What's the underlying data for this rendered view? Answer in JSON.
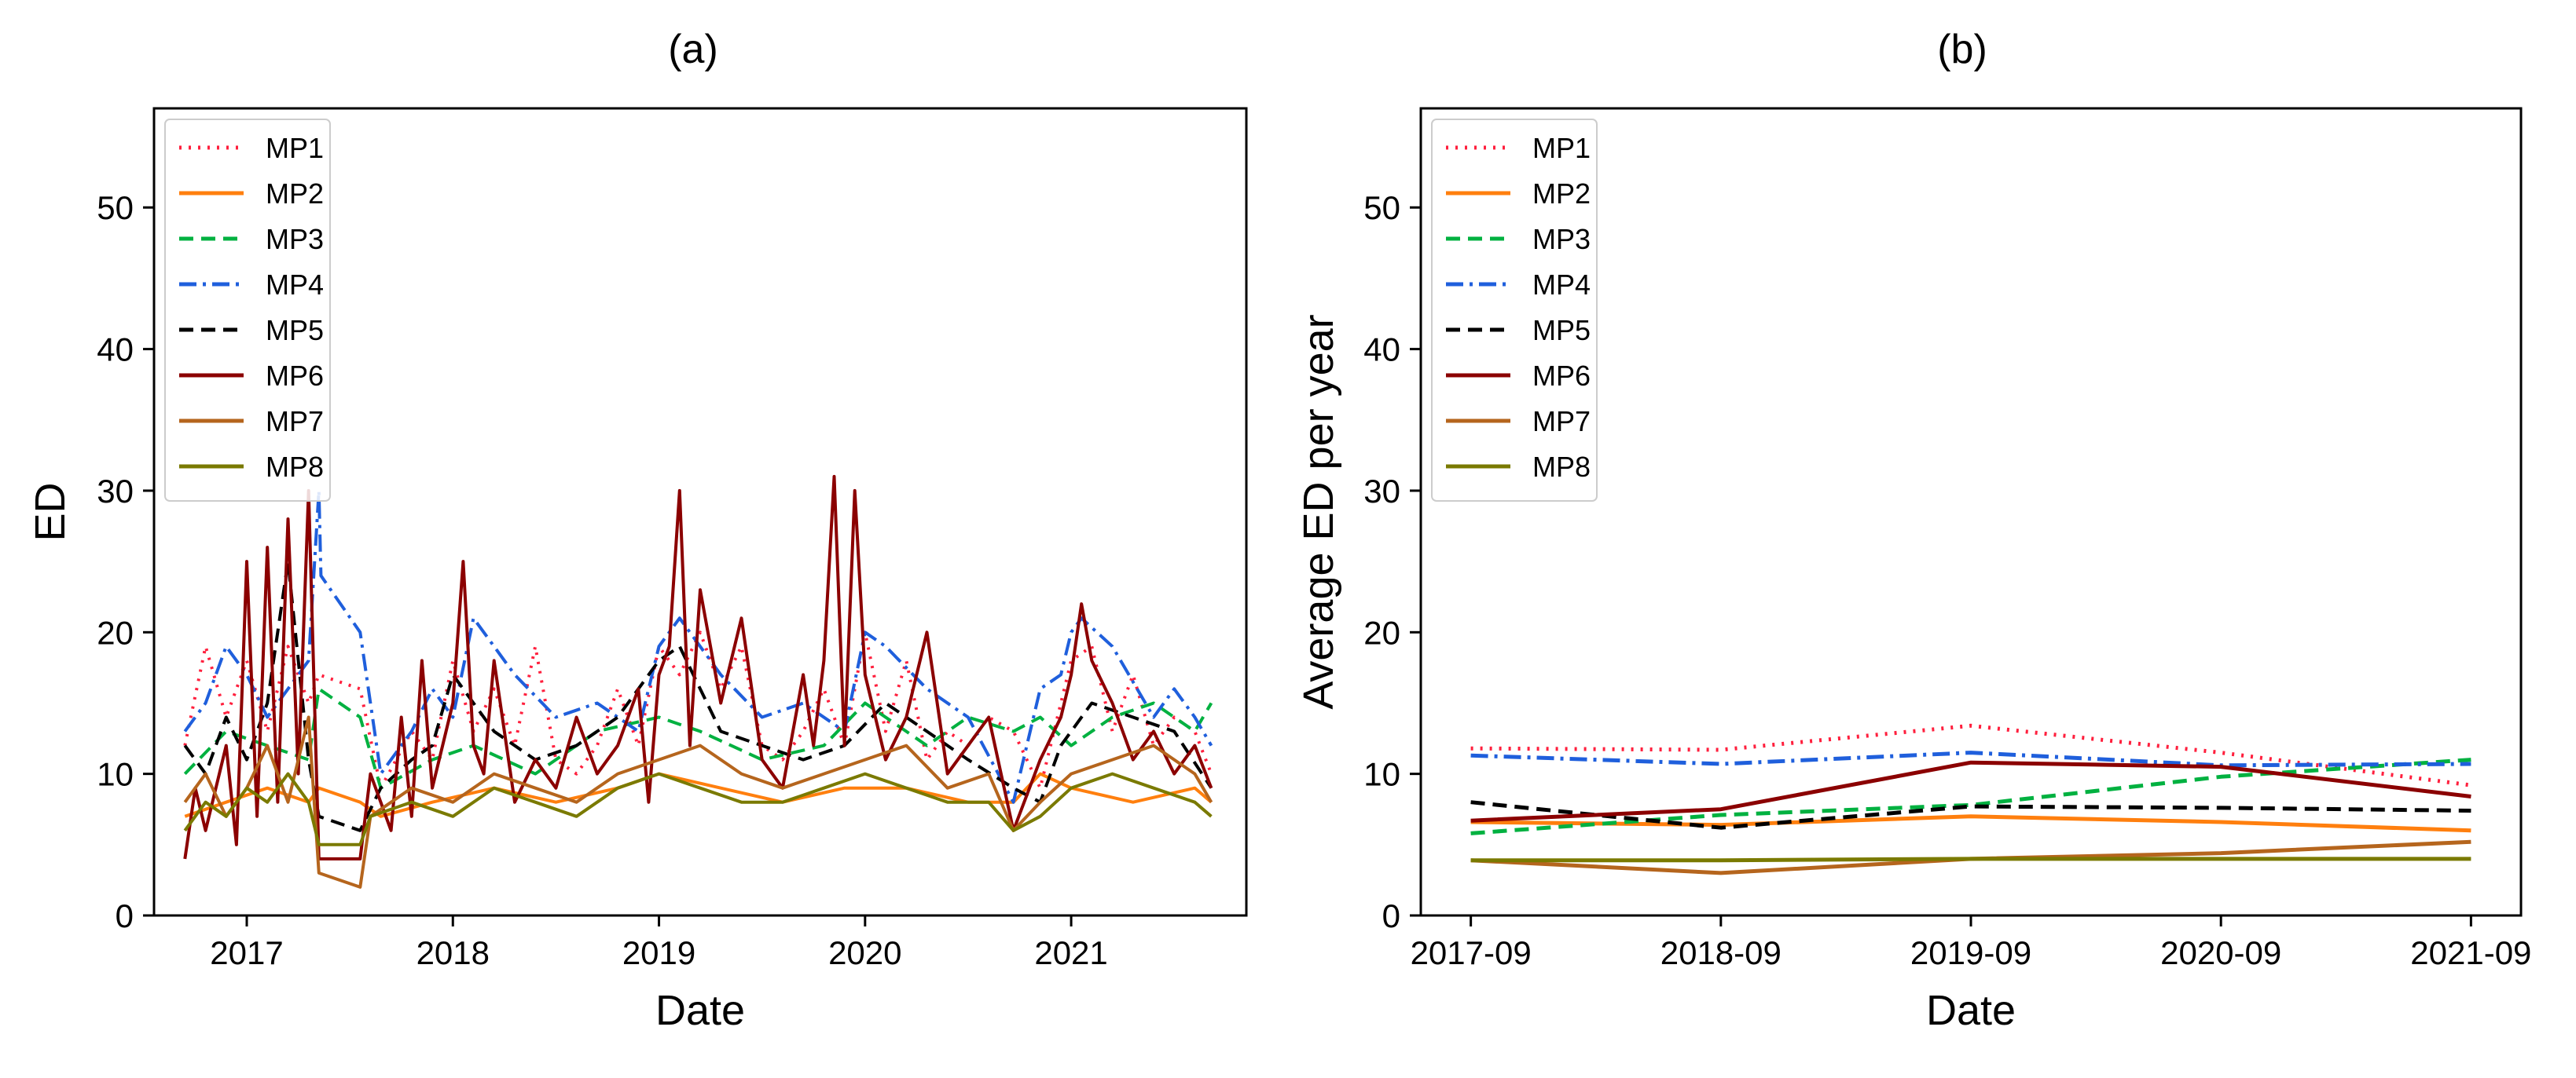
{
  "figure": {
    "panels": [
      "(a)",
      "(b)"
    ]
  },
  "series_styles": [
    {
      "name": "MP1",
      "color": "#ff1f3d",
      "dash": "dotted"
    },
    {
      "name": "MP2",
      "color": "#ff7f0e",
      "dash": "solid"
    },
    {
      "name": "MP3",
      "color": "#00b140",
      "dash": "dashed"
    },
    {
      "name": "MP4",
      "color": "#1f5fdc",
      "dash": "dashdot"
    },
    {
      "name": "MP5",
      "color": "#000000",
      "dash": "dashed"
    },
    {
      "name": "MP6",
      "color": "#8b0000",
      "dash": "solid"
    },
    {
      "name": "MP7",
      "color": "#b5651d",
      "dash": "solid"
    },
    {
      "name": "MP8",
      "color": "#7a7a00",
      "dash": "solid"
    }
  ],
  "chart_data": [
    {
      "type": "line",
      "title": "(a)",
      "xlabel": "Date",
      "ylabel": "ED",
      "xlim": [
        2016.55,
        2021.85
      ],
      "ylim": [
        0,
        57
      ],
      "xticks": [
        2017,
        2018,
        2019,
        2020,
        2021
      ],
      "xtick_labels": [
        "2017",
        "2018",
        "2019",
        "2020",
        "2021"
      ],
      "yticks": [
        0,
        10,
        20,
        30,
        40,
        50
      ],
      "ytick_labels": [
        "0",
        "10",
        "20",
        "30",
        "40",
        "50"
      ],
      "legend": [
        "MP1",
        "MP2",
        "MP3",
        "MP4",
        "MP5",
        "MP6",
        "MP7",
        "MP8"
      ],
      "legend_loc": "upper-left",
      "note": "Dense daily time series approximated by envelope points (peaks) per series",
      "series": [
        {
          "name": "MP1",
          "x": [
            2016.7,
            2016.8,
            2016.9,
            2017.0,
            2017.1,
            2017.2,
            2017.3,
            2017.35,
            2017.55,
            2017.65,
            2017.8,
            2017.9,
            2018.0,
            2018.1,
            2018.2,
            2018.3,
            2018.4,
            2018.5,
            2018.6,
            2018.7,
            2018.8,
            2018.9,
            2019.0,
            2019.1,
            2019.2,
            2019.3,
            2019.4,
            2019.5,
            2019.6,
            2019.7,
            2019.8,
            2019.9,
            2020.0,
            2020.1,
            2020.2,
            2020.3,
            2020.4,
            2020.5,
            2020.6,
            2020.72,
            2020.85,
            2020.95,
            2021.0,
            2021.1,
            2021.2,
            2021.3,
            2021.4,
            2021.5,
            2021.6,
            2021.68
          ],
          "y": [
            12,
            19,
            14,
            18,
            13,
            19,
            15,
            17,
            16,
            9,
            13,
            11,
            18,
            13,
            16,
            12,
            19,
            11,
            10,
            12,
            16,
            12,
            19,
            17,
            20,
            16,
            19,
            12,
            11,
            13,
            16,
            12,
            20,
            13,
            18,
            11,
            13,
            12,
            14,
            13,
            9,
            15,
            18,
            19,
            13,
            17,
            12,
            14,
            13,
            10
          ]
        },
        {
          "name": "MP2",
          "x": [
            2016.7,
            2016.9,
            2017.1,
            2017.3,
            2017.35,
            2017.55,
            2017.65,
            2017.9,
            2018.2,
            2018.5,
            2018.8,
            2019.0,
            2019.3,
            2019.6,
            2019.9,
            2020.2,
            2020.5,
            2020.72,
            2020.85,
            2021.0,
            2021.3,
            2021.6,
            2021.68
          ],
          "y": [
            7,
            8,
            9,
            8,
            9,
            8,
            7,
            8,
            9,
            8,
            9,
            10,
            9,
            8,
            9,
            9,
            8,
            8,
            10,
            9,
            8,
            9,
            8
          ]
        },
        {
          "name": "MP3",
          "x": [
            2016.7,
            2016.9,
            2017.1,
            2017.3,
            2017.35,
            2017.55,
            2017.65,
            2017.9,
            2018.1,
            2018.4,
            2018.7,
            2019.0,
            2019.2,
            2019.5,
            2019.8,
            2020.0,
            2020.3,
            2020.5,
            2020.72,
            2020.85,
            2021.0,
            2021.2,
            2021.4,
            2021.6,
            2021.68
          ],
          "y": [
            10,
            13,
            12,
            11,
            16,
            14,
            9,
            11,
            12,
            10,
            13,
            14,
            13,
            11,
            12,
            15,
            12,
            14,
            13,
            14,
            12,
            14,
            15,
            13,
            15
          ]
        },
        {
          "name": "MP4",
          "x": [
            2016.7,
            2016.8,
            2016.9,
            2017.0,
            2017.1,
            2017.2,
            2017.3,
            2017.35,
            2017.36,
            2017.55,
            2017.65,
            2017.8,
            2017.9,
            2018.0,
            2018.1,
            2018.2,
            2018.3,
            2018.5,
            2018.7,
            2018.9,
            2019.0,
            2019.1,
            2019.3,
            2019.5,
            2019.7,
            2019.9,
            2020.0,
            2020.1,
            2020.3,
            2020.5,
            2020.72,
            2020.85,
            2020.95,
            2021.0,
            2021.05,
            2021.2,
            2021.4,
            2021.5,
            2021.6,
            2021.68
          ],
          "y": [
            13,
            15,
            19,
            17,
            14,
            16,
            18,
            30,
            24,
            20,
            10,
            13,
            16,
            14,
            21,
            19,
            17,
            14,
            15,
            13,
            19,
            21,
            17,
            14,
            15,
            13,
            20,
            19,
            16,
            14,
            8,
            16,
            17,
            20,
            21,
            19,
            14,
            16,
            14,
            12
          ]
        },
        {
          "name": "MP5",
          "x": [
            2016.7,
            2016.8,
            2016.9,
            2017.0,
            2017.1,
            2017.2,
            2017.3,
            2017.35,
            2017.55,
            2017.65,
            2017.8,
            2017.9,
            2018.0,
            2018.2,
            2018.4,
            2018.6,
            2018.8,
            2019.0,
            2019.1,
            2019.3,
            2019.5,
            2019.7,
            2019.9,
            2020.1,
            2020.3,
            2020.5,
            2020.72,
            2020.85,
            2020.95,
            2021.1,
            2021.3,
            2021.5,
            2021.68
          ],
          "y": [
            12,
            10,
            14,
            11,
            15,
            25,
            11,
            7,
            6,
            9,
            11,
            12,
            17,
            13,
            11,
            12,
            14,
            18,
            19,
            13,
            12,
            11,
            12,
            15,
            13,
            11,
            9,
            8,
            12,
            15,
            14,
            13,
            9
          ]
        },
        {
          "name": "MP6",
          "x": [
            2016.7,
            2016.75,
            2016.8,
            2016.9,
            2016.95,
            2017.0,
            2017.05,
            2017.1,
            2017.15,
            2017.2,
            2017.25,
            2017.3,
            2017.35,
            2017.55,
            2017.6,
            2017.7,
            2017.75,
            2017.8,
            2017.85,
            2017.9,
            2017.95,
            2018.0,
            2018.05,
            2018.1,
            2018.15,
            2018.2,
            2018.3,
            2018.4,
            2018.5,
            2018.6,
            2018.7,
            2018.8,
            2018.9,
            2018.95,
            2019.0,
            2019.05,
            2019.1,
            2019.15,
            2019.2,
            2019.3,
            2019.4,
            2019.5,
            2019.6,
            2019.7,
            2019.75,
            2019.8,
            2019.85,
            2019.9,
            2019.95,
            2020.0,
            2020.1,
            2020.2,
            2020.3,
            2020.4,
            2020.5,
            2020.6,
            2020.72,
            2020.85,
            2020.95,
            2021.0,
            2021.05,
            2021.1,
            2021.2,
            2021.3,
            2021.4,
            2021.5,
            2021.6,
            2021.68
          ],
          "y": [
            4,
            9,
            6,
            12,
            5,
            25,
            7,
            26,
            8,
            28,
            10,
            30,
            4,
            4,
            10,
            6,
            14,
            7,
            18,
            9,
            12,
            15,
            25,
            12,
            10,
            18,
            8,
            11,
            9,
            14,
            10,
            12,
            16,
            8,
            17,
            19,
            30,
            12,
            23,
            15,
            21,
            11,
            9,
            17,
            12,
            18,
            31,
            12,
            30,
            17,
            11,
            14,
            20,
            10,
            12,
            14,
            6,
            11,
            14,
            17,
            22,
            18,
            15,
            11,
            13,
            10,
            12,
            9
          ]
        },
        {
          "name": "MP7",
          "x": [
            2016.7,
            2016.8,
            2016.9,
            2017.0,
            2017.1,
            2017.2,
            2017.3,
            2017.35,
            2017.55,
            2017.6,
            2017.8,
            2018.0,
            2018.2,
            2018.4,
            2018.6,
            2018.8,
            2019.0,
            2019.2,
            2019.4,
            2019.6,
            2019.8,
            2020.0,
            2020.2,
            2020.4,
            2020.6,
            2020.72,
            2020.85,
            2021.0,
            2021.2,
            2021.4,
            2021.6,
            2021.68
          ],
          "y": [
            8,
            10,
            7,
            9,
            12,
            8,
            14,
            3,
            2,
            7,
            9,
            8,
            10,
            9,
            8,
            10,
            11,
            12,
            10,
            9,
            10,
            11,
            12,
            9,
            10,
            6,
            8,
            10,
            11,
            12,
            10,
            8
          ]
        },
        {
          "name": "MP8",
          "x": [
            2016.7,
            2016.8,
            2016.9,
            2017.0,
            2017.1,
            2017.2,
            2017.3,
            2017.35,
            2017.55,
            2017.6,
            2017.8,
            2018.0,
            2018.2,
            2018.4,
            2018.6,
            2018.8,
            2019.0,
            2019.2,
            2019.4,
            2019.6,
            2019.8,
            2020.0,
            2020.2,
            2020.4,
            2020.6,
            2020.72,
            2020.85,
            2021.0,
            2021.2,
            2021.4,
            2021.6,
            2021.68
          ],
          "y": [
            6,
            8,
            7,
            9,
            8,
            10,
            8,
            5,
            5,
            7,
            8,
            7,
            9,
            8,
            7,
            9,
            10,
            9,
            8,
            8,
            9,
            10,
            9,
            8,
            8,
            6,
            7,
            9,
            10,
            9,
            8,
            7
          ]
        }
      ]
    },
    {
      "type": "line",
      "title": "(b)",
      "xlabel": "Date",
      "ylabel": "Average ED per year",
      "categories": [
        "2017-09",
        "2018-09",
        "2019-09",
        "2020-09",
        "2021-09"
      ],
      "ylim": [
        0,
        57
      ],
      "yticks": [
        0,
        10,
        20,
        30,
        40,
        50
      ],
      "ytick_labels": [
        "0",
        "10",
        "20",
        "30",
        "40",
        "50"
      ],
      "legend": [
        "MP1",
        "MP2",
        "MP3",
        "MP4",
        "MP5",
        "MP6",
        "MP7",
        "MP8"
      ],
      "legend_loc": "upper-left",
      "series": [
        {
          "name": "MP1",
          "values": [
            11.8,
            11.7,
            13.4,
            11.5,
            9.2
          ]
        },
        {
          "name": "MP2",
          "values": [
            6.6,
            6.4,
            7.0,
            6.6,
            6.0
          ]
        },
        {
          "name": "MP3",
          "values": [
            5.8,
            7.1,
            7.8,
            9.8,
            11.0
          ]
        },
        {
          "name": "MP4",
          "values": [
            11.3,
            10.7,
            11.5,
            10.6,
            10.7
          ]
        },
        {
          "name": "MP5",
          "values": [
            8.0,
            6.2,
            7.7,
            7.6,
            7.4
          ]
        },
        {
          "name": "MP6",
          "values": [
            6.7,
            7.5,
            10.8,
            10.5,
            8.4
          ]
        },
        {
          "name": "MP7",
          "values": [
            3.9,
            3.0,
            4.0,
            4.4,
            5.2
          ]
        },
        {
          "name": "MP8",
          "values": [
            3.9,
            3.9,
            4.0,
            4.0,
            4.0
          ]
        }
      ]
    }
  ]
}
